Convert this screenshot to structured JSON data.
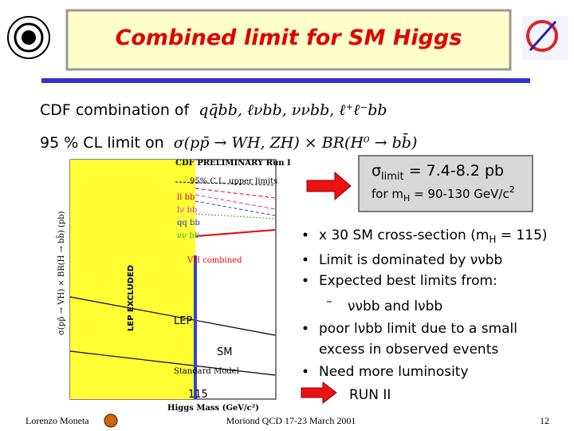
{
  "title": "Combined limit for SM Higgs",
  "intro": [
    {
      "label": "CDF combination of",
      "formula": "qq̄bb, ℓνbb, ννbb, ℓ⁺ℓ⁻bb"
    },
    {
      "label": "95 % CL limit on",
      "formula": "σ(pp̄ → WH, ZH) × BR(H⁰ → bb̄)"
    }
  ],
  "result": {
    "symbol": "σ",
    "symbol_sub": "limit",
    "value": " = 7.4-8.2 pb",
    "line2": "for m",
    "line2_sub": "H",
    "line2_rest": " = 90-130 GeV/c",
    "line2_sup": "2"
  },
  "plot": {
    "header": "CDF PRELIMINARY Run I",
    "legend_title": "95% C.L. upper limits",
    "channels": [
      "ll bb",
      "lν bb",
      "qq bb",
      "νν bb"
    ],
    "combined": "VH combined",
    "lep": "LEP",
    "sm": "SM",
    "standard_model": "Standard Model",
    "mass_marker": "115",
    "excluded": "LEP EXCLUDED",
    "y_label": "σ(pp̄ → VH) × BR(H → bb̄) (pb)",
    "x_label": "Higgs Mass (GeV/c²)"
  },
  "bullets": [
    {
      "text": "x 30 SM cross-section (m",
      "sub": "H",
      "tail": " = 115)"
    },
    {
      "text": "Limit is dominated by ννbb"
    },
    {
      "text": "Expected best limits from:",
      "sub_items": [
        "ννbb and lνbb"
      ]
    },
    {
      "lines": [
        "poor lνbb limit due to a small",
        "excess in observed events"
      ]
    },
    {
      "text": "Need more luminosity",
      "result": "RUN II"
    }
  ],
  "footer": {
    "author": "Lorenzo Moneta",
    "event": "Moriond QCD 17-23 March 2001",
    "page": "12"
  }
}
